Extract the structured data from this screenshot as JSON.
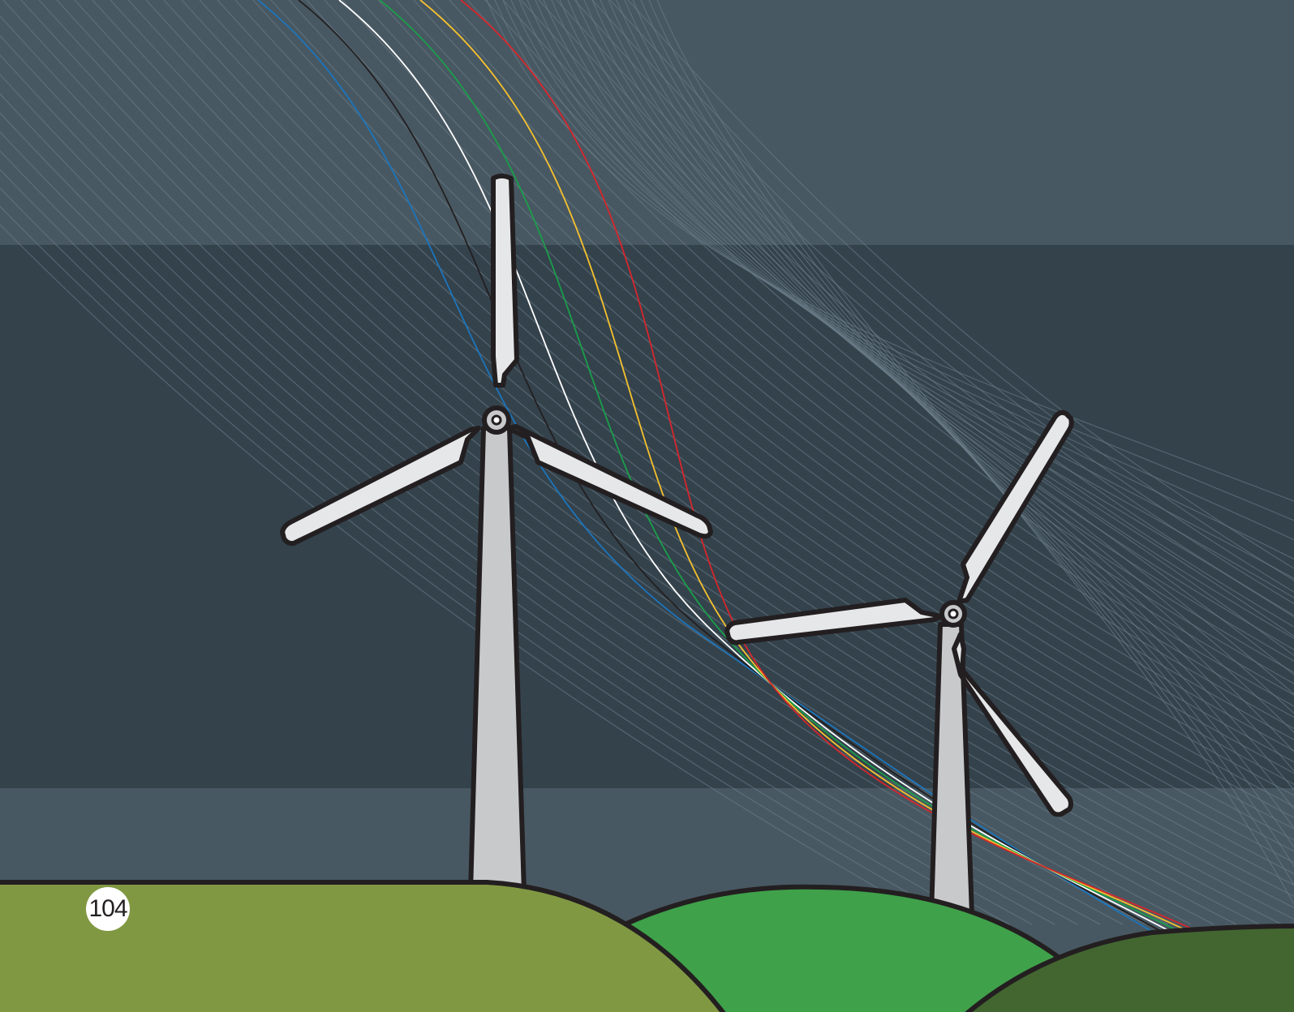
{
  "page": {
    "number": "104"
  },
  "palette": {
    "sky_top": "#485862",
    "sky_middle": "#34424c",
    "sky_bottom": "#485862",
    "hill_left": "#819843",
    "hill_middle": "#3fa14a",
    "hill_right": "#436631",
    "turbine_tower": "#c8c9cb",
    "turbine_blade": "#e6e7e8",
    "outline": "#231f20",
    "wind_lines": "#6d7f8a",
    "wire_colors": [
      "#1c75bc",
      "#231f20",
      "#ffffff",
      "#1a9e4a",
      "#f6c12d",
      "#d7262c"
    ]
  },
  "illustration": {
    "subjects": [
      "wind-turbine-large",
      "wind-turbine-small",
      "wind-streamlines",
      "colored-wires",
      "rolling-hills"
    ]
  }
}
